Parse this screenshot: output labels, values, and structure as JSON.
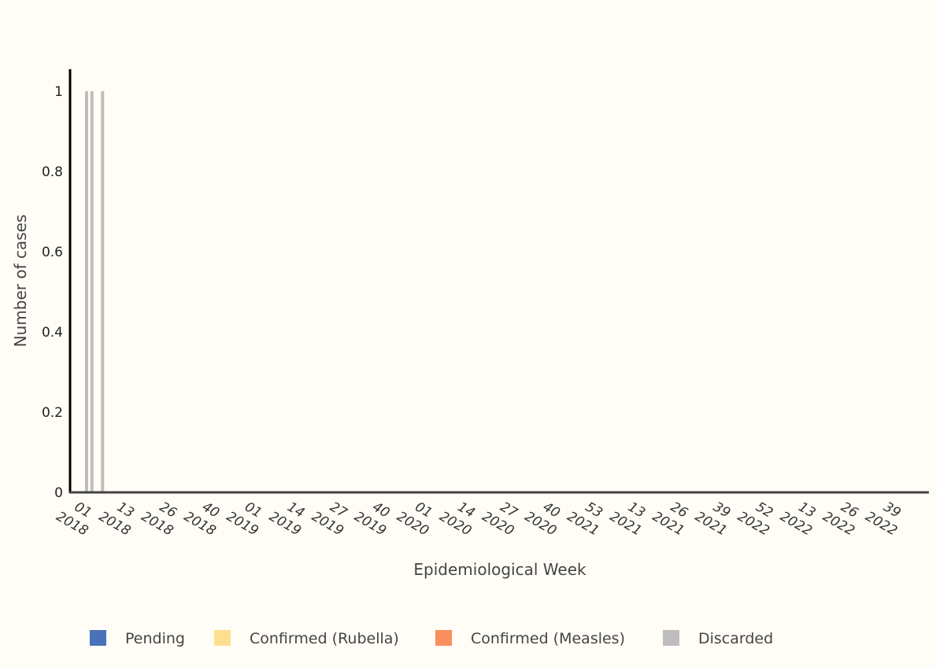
{
  "chart_data": {
    "type": "bar",
    "stacked": true,
    "title": "",
    "xlabel": "Epidemiological Week",
    "ylabel": "Number of cases",
    "ylim": [
      0,
      1
    ],
    "y_ticks": [
      "0",
      "0.2",
      "0.4",
      "0.6",
      "0.8",
      "1"
    ],
    "y_tick_values": [
      0,
      0.2,
      0.4,
      0.6,
      0.8,
      1
    ],
    "grid": false,
    "legend_position": "bottom",
    "x_ticks": [
      {
        "week": "01",
        "year": "2018"
      },
      {
        "week": "13",
        "year": "2018"
      },
      {
        "week": "26",
        "year": "2018"
      },
      {
        "week": "40",
        "year": "2018"
      },
      {
        "week": "01",
        "year": "2019"
      },
      {
        "week": "14",
        "year": "2019"
      },
      {
        "week": "27",
        "year": "2019"
      },
      {
        "week": "40",
        "year": "2019"
      },
      {
        "week": "01",
        "year": "2020"
      },
      {
        "week": "14",
        "year": "2020"
      },
      {
        "week": "27",
        "year": "2020"
      },
      {
        "week": "40",
        "year": "2020"
      },
      {
        "week": "53",
        "year": "2021"
      },
      {
        "week": "13",
        "year": "2021"
      },
      {
        "week": "26",
        "year": "2021"
      },
      {
        "week": "39",
        "year": "2021"
      },
      {
        "week": "52",
        "year": "2022"
      },
      {
        "week": "13",
        "year": "2022"
      },
      {
        "week": "26",
        "year": "2022"
      },
      {
        "week": "39",
        "year": "2022"
      }
    ],
    "series": [
      {
        "name": "Pending",
        "color": "#4a72b8",
        "bars": []
      },
      {
        "name": "Confirmed (Rubella)",
        "color": "#fde08f",
        "bars": []
      },
      {
        "name": "Confirmed (Measles)",
        "color": "#f98f5c",
        "bars": []
      },
      {
        "name": "Discarded",
        "color": "#bdbdbd",
        "bars": [
          {
            "week": "01",
            "year": "2018",
            "value": 1
          },
          {
            "week": "05",
            "year": "2018",
            "value": 1
          },
          {
            "week": "13",
            "year": "2018",
            "value": 1
          }
        ]
      }
    ]
  }
}
